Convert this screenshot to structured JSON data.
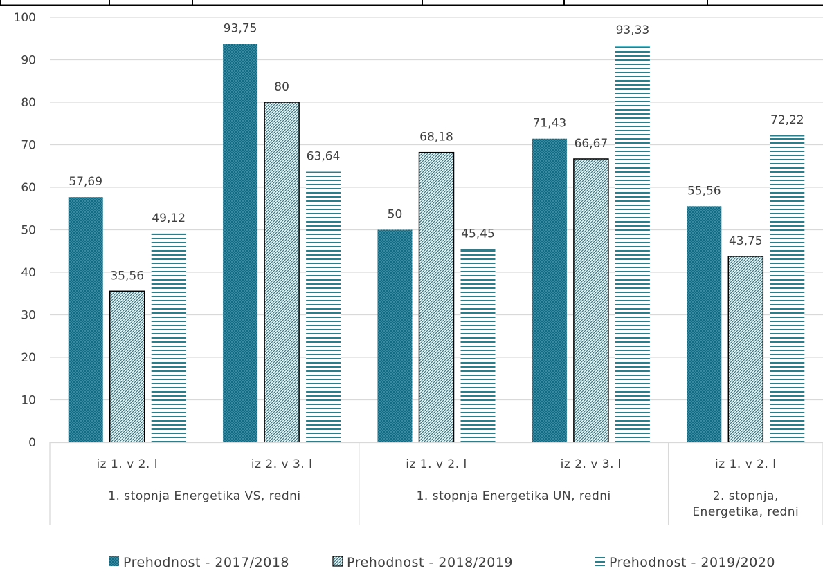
{
  "chart_data": {
    "type": "bar",
    "ylim": [
      0,
      100
    ],
    "yticks": [
      0,
      10,
      20,
      30,
      40,
      50,
      60,
      70,
      80,
      90,
      100
    ],
    "grid": true,
    "legend_position": "bottom",
    "groups": [
      {
        "label": "1. stopnja Energetika VS, redni",
        "label_lines": [
          "1. stopnja Energetika VS, redni"
        ],
        "categories": [
          "iz 1. v 2. l",
          "iz 2. v 3. l"
        ]
      },
      {
        "label": "1. stopnja Energetika UN, redni",
        "label_lines": [
          "1. stopnja Energetika UN, redni"
        ],
        "categories": [
          "iz 1. v 2. l",
          "iz 2. v 3. l"
        ]
      },
      {
        "label": "2. stopnja, Energetika, redni",
        "label_lines": [
          "2. stopnja,",
          "Energetika, redni"
        ],
        "categories": [
          "iz 1. v 2. l"
        ]
      }
    ],
    "series": [
      {
        "name": "Prehodnost - 2017/2018",
        "color": "#0e6d86",
        "pattern": "dots",
        "values": [
          57.69,
          93.75,
          50,
          71.43,
          55.56
        ],
        "labels": [
          "57,69",
          "93,75",
          "50",
          "71,43",
          "55,56"
        ]
      },
      {
        "name": "Prehodnost - 2018/2019",
        "color": "#2d7f91",
        "pattern": "diagonal",
        "values": [
          35.56,
          80,
          68.18,
          66.67,
          43.75
        ],
        "labels": [
          "35,56",
          "80",
          "68,18",
          "66,67",
          "43,75"
        ]
      },
      {
        "name": "Prehodnost - 2019/2020",
        "color": "#2a7f8c",
        "pattern": "horizontal",
        "values": [
          49.12,
          63.64,
          45.45,
          93.33,
          72.22
        ],
        "labels": [
          "49,12",
          "63,64",
          "45,45",
          "93,33",
          "72,22"
        ]
      }
    ]
  }
}
